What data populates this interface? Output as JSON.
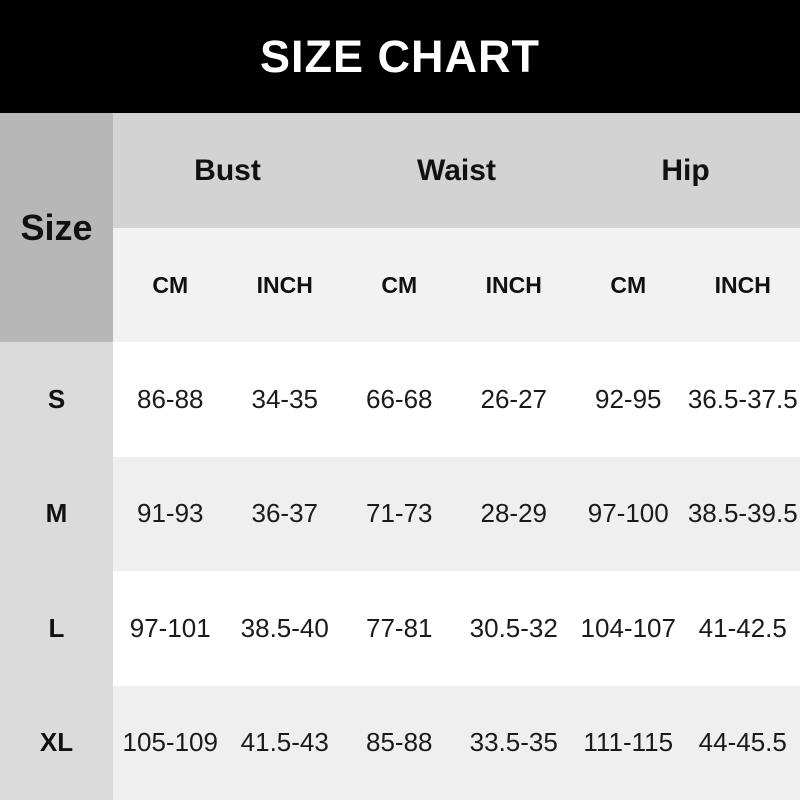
{
  "title": "SIZE CHART",
  "colors": {
    "banner_bg": "#000000",
    "title_text": "#ffffff",
    "size_header_bg": "#b7b7b7",
    "group_header_bg": "#d3d3d3",
    "unit_row_bg": "#f2f2f2",
    "size_col_bg": "#dbdbdb",
    "row_bg": "#ffffff",
    "row_alt_bg": "#efefef",
    "text": "#111111"
  },
  "chart_data": {
    "type": "table",
    "title": "SIZE CHART",
    "row_header": "Size",
    "column_groups": [
      "Bust",
      "Waist",
      "Hip"
    ],
    "unit_headers": [
      "CM",
      "INCH",
      "CM",
      "INCH",
      "CM",
      "INCH"
    ],
    "rows": [
      {
        "size": "S",
        "values": [
          "86-88",
          "34-35",
          "66-68",
          "26-27",
          "92-95",
          "36.5-37.5"
        ]
      },
      {
        "size": "M",
        "values": [
          "91-93",
          "36-37",
          "71-73",
          "28-29",
          "97-100",
          "38.5-39.5"
        ]
      },
      {
        "size": "L",
        "values": [
          "97-101",
          "38.5-40",
          "77-81",
          "30.5-32",
          "104-107",
          "41-42.5"
        ]
      },
      {
        "size": "XL",
        "values": [
          "105-109",
          "41.5-43",
          "85-88",
          "33.5-35",
          "111-115",
          "44-45.5"
        ]
      }
    ]
  }
}
